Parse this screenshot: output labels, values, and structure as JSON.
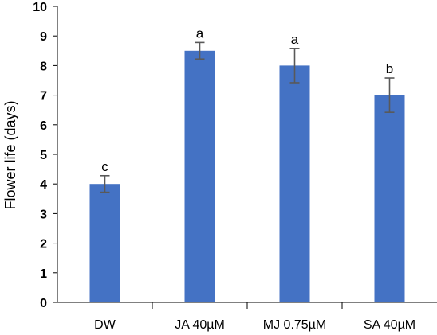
{
  "chart_data": {
    "type": "bar",
    "title": "",
    "xlabel": "",
    "ylabel": "Flower life (days)",
    "ylim": [
      0,
      10
    ],
    "yticks": [
      0,
      1,
      2,
      3,
      4,
      5,
      6,
      7,
      8,
      9,
      10
    ],
    "grid": false,
    "categories": [
      "DW",
      "JA 40µM",
      "MJ 0.75µM",
      "SA 40µM"
    ],
    "values": [
      4.0,
      8.5,
      8.0,
      7.0
    ],
    "error_bars": [
      0.28,
      0.28,
      0.58,
      0.58
    ],
    "significance_letters": [
      "c",
      "a",
      "a",
      "b"
    ],
    "bar_color": "#4472C4",
    "error_bar_color": "#595959"
  }
}
